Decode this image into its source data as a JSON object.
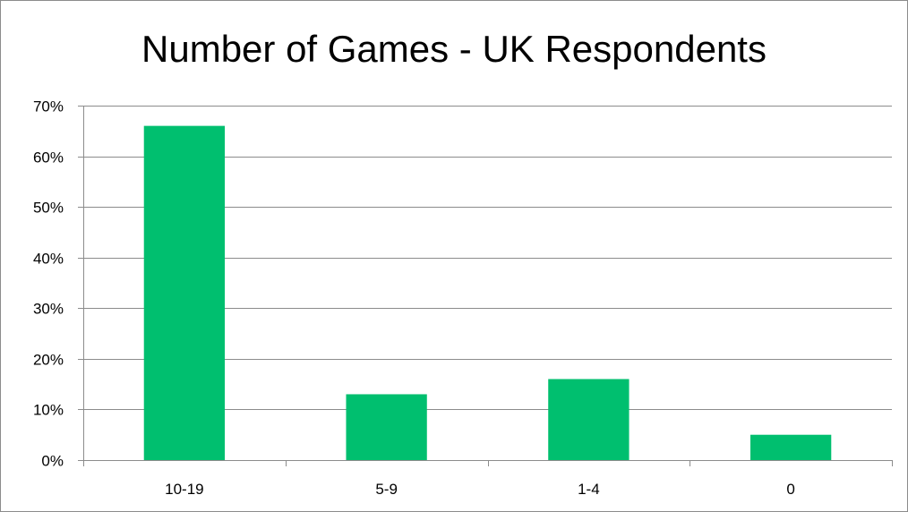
{
  "chart_data": {
    "type": "bar",
    "title": "Number of Games - UK Respondents",
    "categories": [
      "10-19",
      "5-9",
      "1-4",
      "0"
    ],
    "values": [
      66,
      13,
      16,
      5
    ],
    "value_unit": "%",
    "ylim": [
      0,
      70
    ],
    "yticks": [
      "0%",
      "10%",
      "20%",
      "30%",
      "40%",
      "50%",
      "60%",
      "70%"
    ],
    "grid": true,
    "legend": "none",
    "bar_color": "#00bf6f"
  }
}
